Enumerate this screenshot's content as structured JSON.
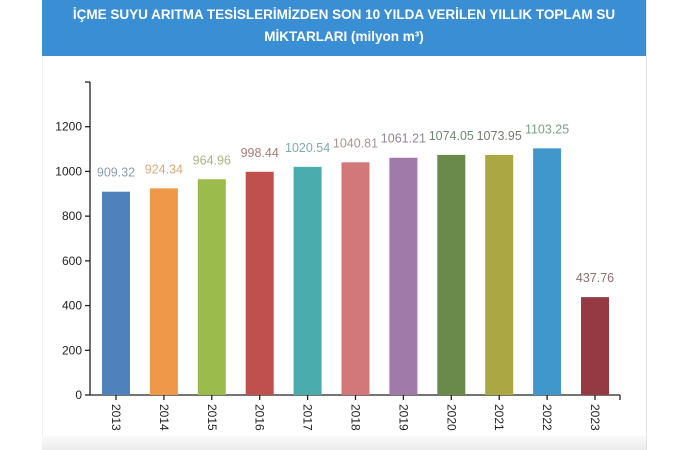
{
  "header": {
    "title_line1": "İÇME SUYU ARITMA TESİSLERİMİZDEN SON 10 YILDA VERİLEN YILLIK TOPLAM SU",
    "title_line2": "MİKTARLARI (milyon m³)"
  },
  "chart_data": {
    "type": "bar",
    "title": "İÇME SUYU ARITMA TESİSLERİMİZDEN SON 10 YILDA VERİLEN YILLIK TOPLAM SU MİKTARLARI (milyon m³)",
    "categories": [
      "2013",
      "2014",
      "2015",
      "2016",
      "2017",
      "2018",
      "2019",
      "2020",
      "2021",
      "2022",
      "2023"
    ],
    "values": [
      909.32,
      924.34,
      964.96,
      998.44,
      1020.54,
      1040.81,
      1061.21,
      1074.05,
      1073.95,
      1103.25,
      437.76
    ],
    "value_labels": [
      "909.32",
      "924.34",
      "964.96",
      "998.44",
      "1020.54",
      "1040.81",
      "1061.21",
      "1074.05",
      "1073.95",
      "1103.25",
      "437.76"
    ],
    "colors": [
      "#4f81bd",
      "#f0984a",
      "#9bbb4c",
      "#c0504d",
      "#4bacad",
      "#d2777a",
      "#a07aa8",
      "#6a8a4c",
      "#aba843",
      "#3f97cc",
      "#953a42"
    ],
    "label_colors": [
      "#8a9bb0",
      "#d9aa78",
      "#a9b57e",
      "#a87a7a",
      "#7eaaab",
      "#a99494",
      "#8e8694",
      "#6d8a73",
      "#767a70",
      "#7a9f8a",
      "#8a7070"
    ],
    "yticks": [
      0,
      200,
      400,
      600,
      800,
      1000,
      1200
    ],
    "ylim": [
      0,
      1400
    ],
    "xlabel": "",
    "ylabel": "",
    "grid": false
  }
}
